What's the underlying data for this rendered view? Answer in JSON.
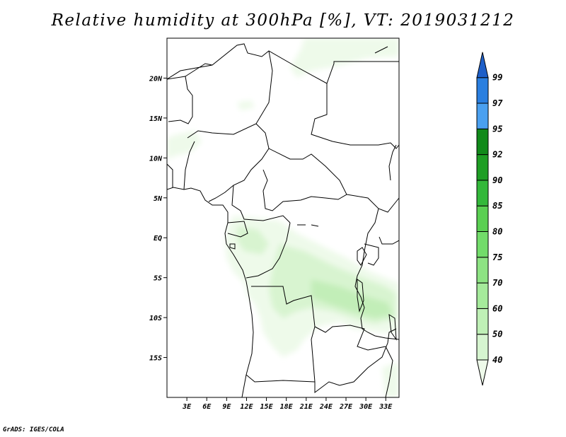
{
  "title": "Relative humidity at 300hPa [%], VT: 2019031212",
  "credit": "GrADS: IGES/COLA",
  "map": {
    "lat_range": [
      -20,
      25
    ],
    "lon_range": [
      0,
      35
    ],
    "y_ticks": [
      "20N",
      "15N",
      "10N",
      "5N",
      "EQ",
      "5S",
      "10S",
      "15S"
    ],
    "x_ticks": [
      "3E",
      "6E",
      "9E",
      "12E",
      "15E",
      "18E",
      "21E",
      "24E",
      "27E",
      "30E",
      "33E"
    ]
  },
  "colorbar": {
    "levels": [
      "40",
      "50",
      "60",
      "70",
      "75",
      "80",
      "85",
      "90",
      "92",
      "95",
      "97",
      "99"
    ],
    "colors": [
      "#eefaea",
      "#d6f5d0",
      "#bff0b6",
      "#a5ea9b",
      "#8de383",
      "#72dc6a",
      "#5acf52",
      "#33b83a",
      "#1e9e24",
      "#118a1a",
      "#4aa0f0",
      "#2a7fe0",
      "#1e5fc8"
    ]
  },
  "fields": {
    "humidity_colors": [
      "#eefaea",
      "#d8f4d0",
      "#c2eeb8"
    ]
  }
}
